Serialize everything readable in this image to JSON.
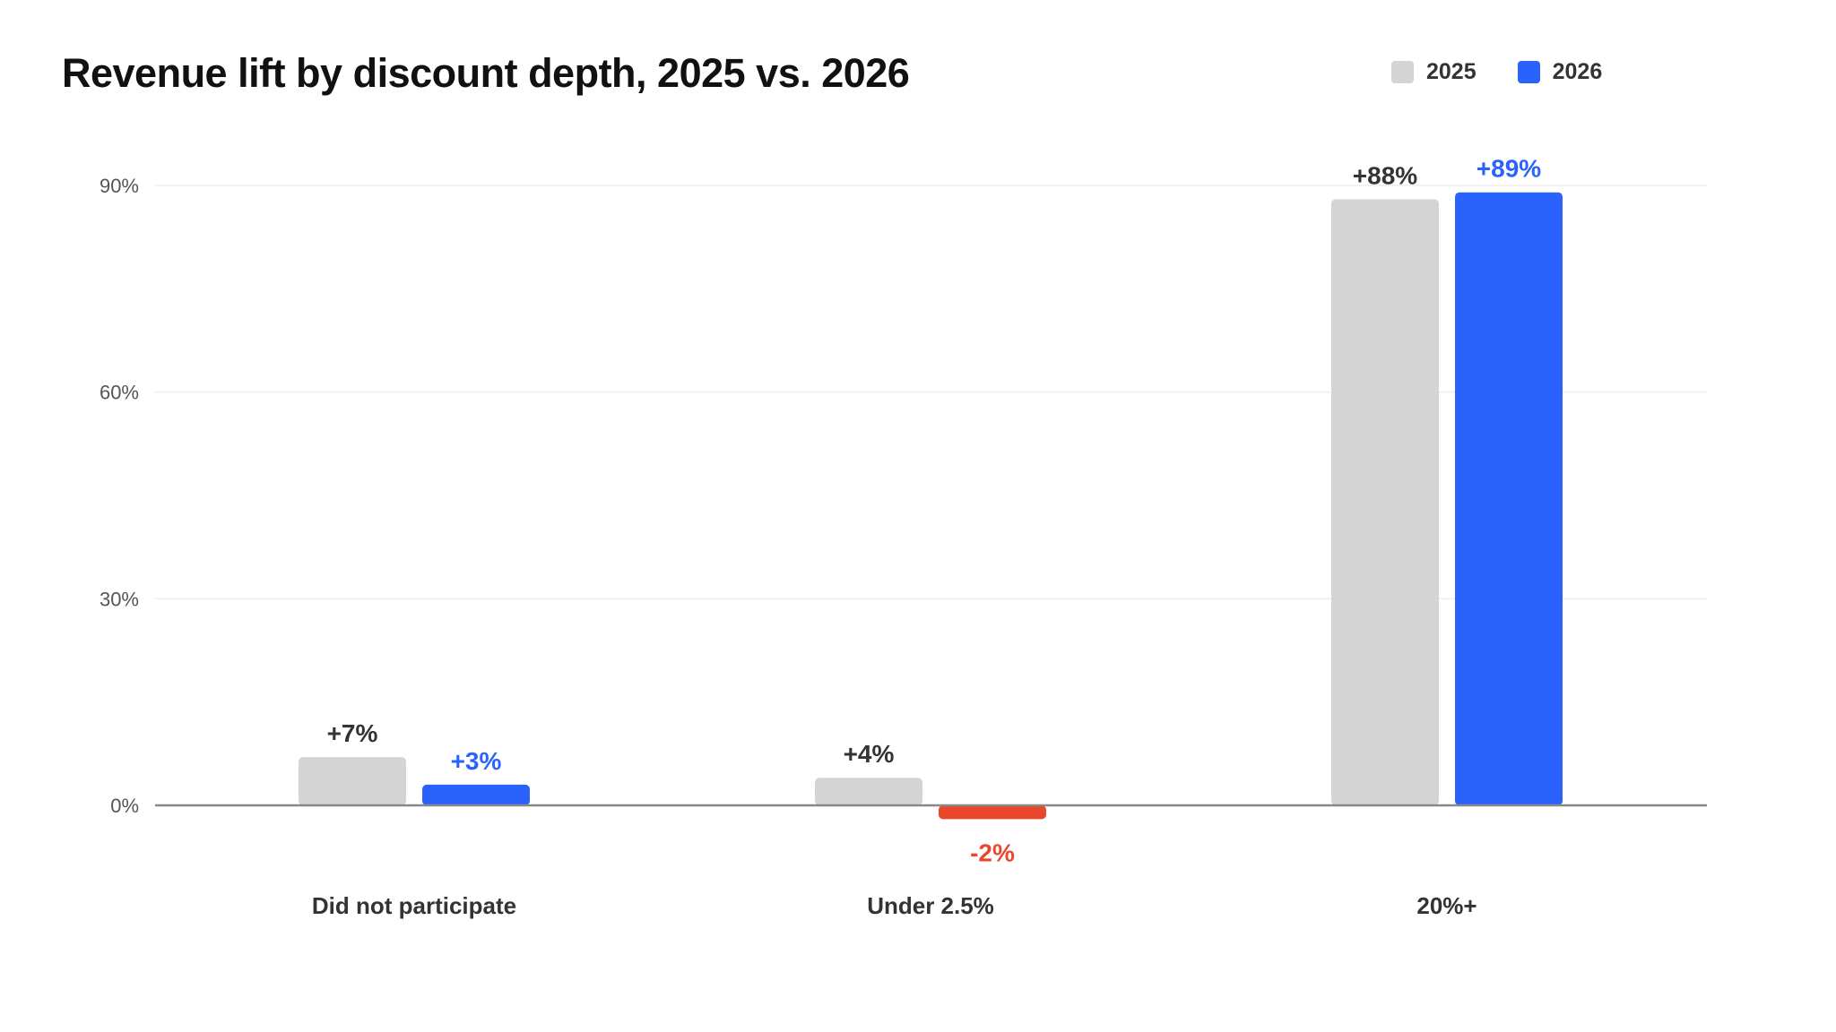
{
  "colors": {
    "series_2025": "#d4d4d4",
    "series_2026": "#2a62fe",
    "negative": "#e8472c",
    "label_2025": "#333333",
    "gridline": "#eeeeee",
    "baseline": "#888888",
    "tick_label": "#555555",
    "category_label": "#333333"
  },
  "chart_data": {
    "type": "bar",
    "title": "Revenue lift by discount depth, 2025 vs. 2026",
    "xlabel": "",
    "ylabel": "",
    "categories": [
      "Did not participate",
      "Under 2.5%",
      "20%+"
    ],
    "series": [
      {
        "name": "2025",
        "values": [
          7,
          4,
          88
        ],
        "labels": [
          "+7%",
          "+4%",
          "+88%"
        ]
      },
      {
        "name": "2026",
        "values": [
          3,
          -2,
          89
        ],
        "labels": [
          "+3%",
          "-2%",
          "+89%"
        ]
      }
    ],
    "ylim": [
      0,
      90
    ],
    "yticks": [
      0,
      30,
      60,
      90
    ],
    "ytick_labels": [
      "0%",
      "30%",
      "60%",
      "90%"
    ],
    "grid": true,
    "legend_position": "top-right"
  }
}
